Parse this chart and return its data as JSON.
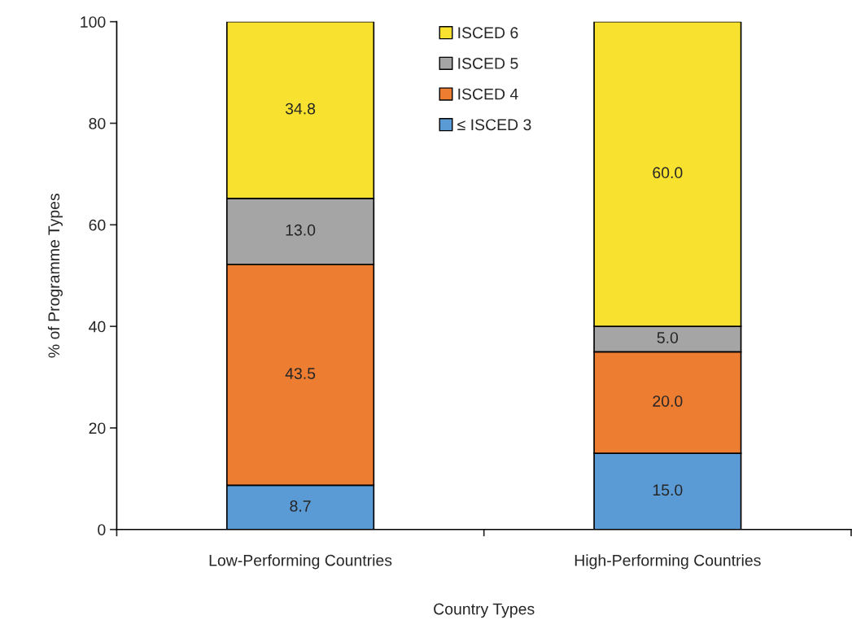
{
  "chart_data": {
    "type": "bar",
    "stacked": true,
    "xlabel": "Country Types",
    "ylabel": "% of Programme Types",
    "categories": [
      "Low-Performing Countries",
      "High-Performing Countries"
    ],
    "series": [
      {
        "name": "≤ ISCED 3",
        "color": "#5b9bd5",
        "values": [
          8.7,
          15.0
        ],
        "value_labels": [
          "8.7",
          "15.0"
        ]
      },
      {
        "name": "ISCED 4",
        "color": "#ed7d31",
        "values": [
          43.5,
          20.0
        ],
        "value_labels": [
          "43.5",
          "20.0"
        ]
      },
      {
        "name": "ISCED 5",
        "color": "#a5a5a5",
        "values": [
          13.0,
          5.0
        ],
        "value_labels": [
          "13.0",
          "5.0"
        ]
      },
      {
        "name": "ISCED 6",
        "color": "#f9e22f",
        "values": [
          34.8,
          60.0
        ],
        "value_labels": [
          "34.8",
          "60.0"
        ]
      }
    ],
    "ylim": [
      0,
      100
    ],
    "yticks": [
      0,
      20,
      40,
      60,
      80,
      100
    ],
    "legend": "top",
    "grid": false
  }
}
